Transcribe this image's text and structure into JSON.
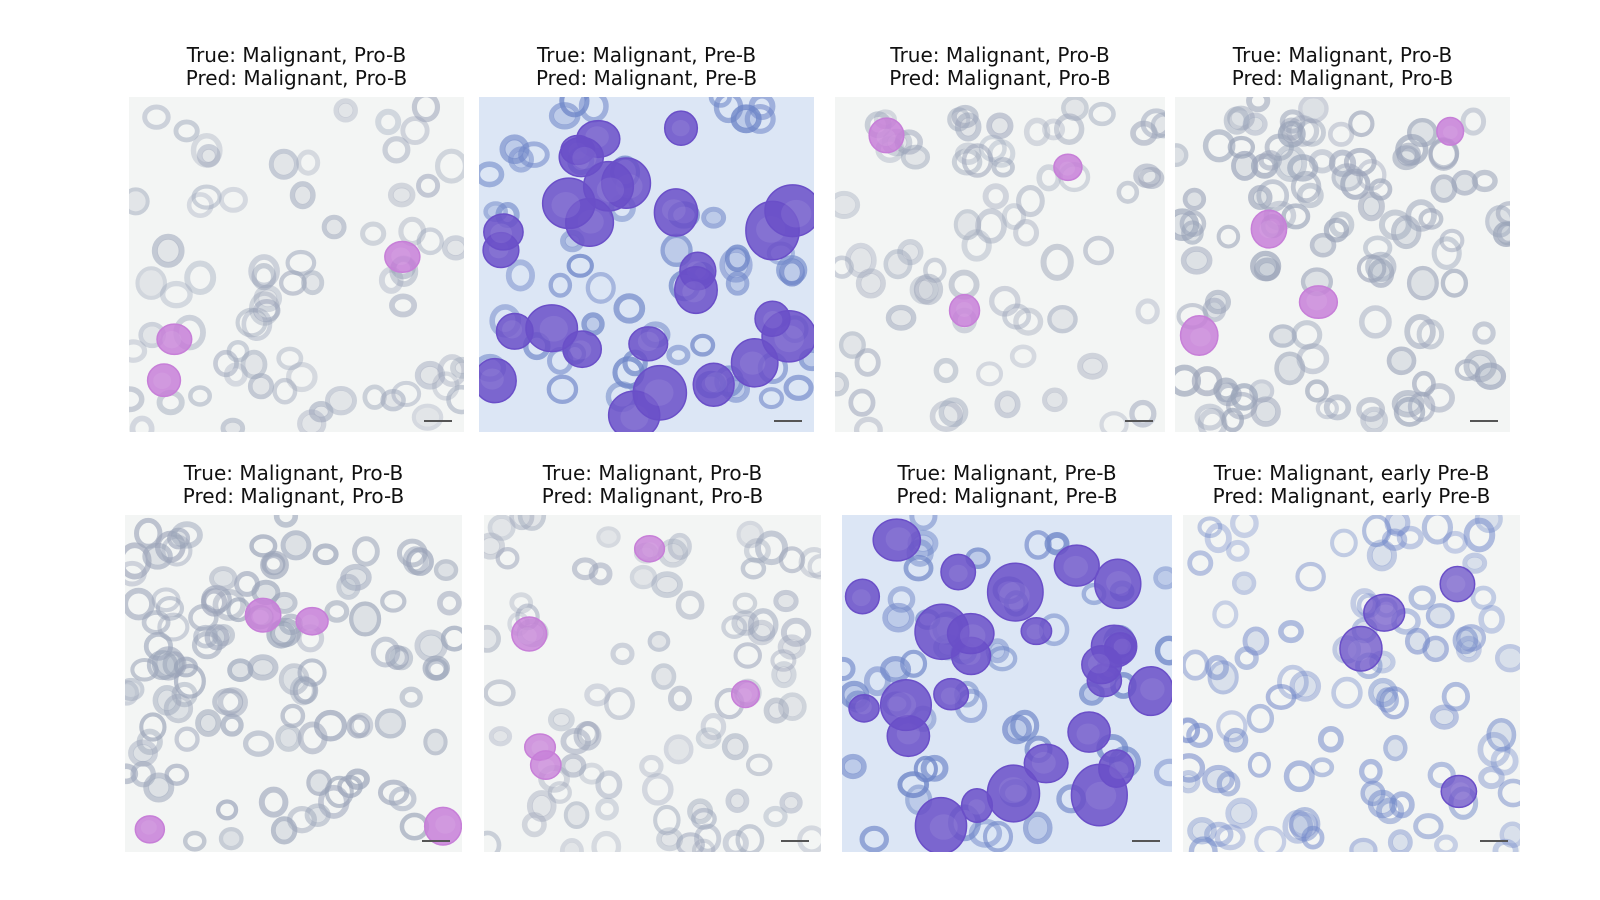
{
  "panels": [
    {
      "true_label": "True: Malignant, Pro-B",
      "pred_label": "Pred: Malignant, Pro-B",
      "image": "blood-smear-pro-b-sparse"
    },
    {
      "true_label": "True: Malignant, Pre-B",
      "pred_label": "Pred: Malignant, Pre-B",
      "image": "blood-smear-pre-b-dense"
    },
    {
      "true_label": "True: Malignant, Pro-B",
      "pred_label": "Pred: Malignant, Pro-B",
      "image": "blood-smear-pro-b-sparse"
    },
    {
      "true_label": "True: Malignant, Pro-B",
      "pred_label": "Pred: Malignant, Pro-B",
      "image": "blood-smear-pro-b-grey"
    },
    {
      "true_label": "True: Malignant, Pro-B",
      "pred_label": "Pred: Malignant, Pro-B",
      "image": "blood-smear-pro-b-grey"
    },
    {
      "true_label": "True: Malignant, Pro-B",
      "pred_label": "Pred: Malignant, Pro-B",
      "image": "blood-smear-pro-b-light"
    },
    {
      "true_label": "True: Malignant, Pre-B",
      "pred_label": "Pred: Malignant, Pre-B",
      "image": "blood-smear-pre-b-dense"
    },
    {
      "true_label": "True: Malignant, early Pre-B",
      "pred_label": "Pred: Malignant, early Pre-B",
      "image": "blood-smear-early-pre-b"
    }
  ],
  "colors": {
    "rbc_grey": "#9aa3b8",
    "rbc_blue": "#6f86c8",
    "blast_pink": "#c77fd8",
    "blast_purple": "#6a4fc8",
    "background_light": "#f3f5f4",
    "background_blue": "#dce6f5"
  }
}
